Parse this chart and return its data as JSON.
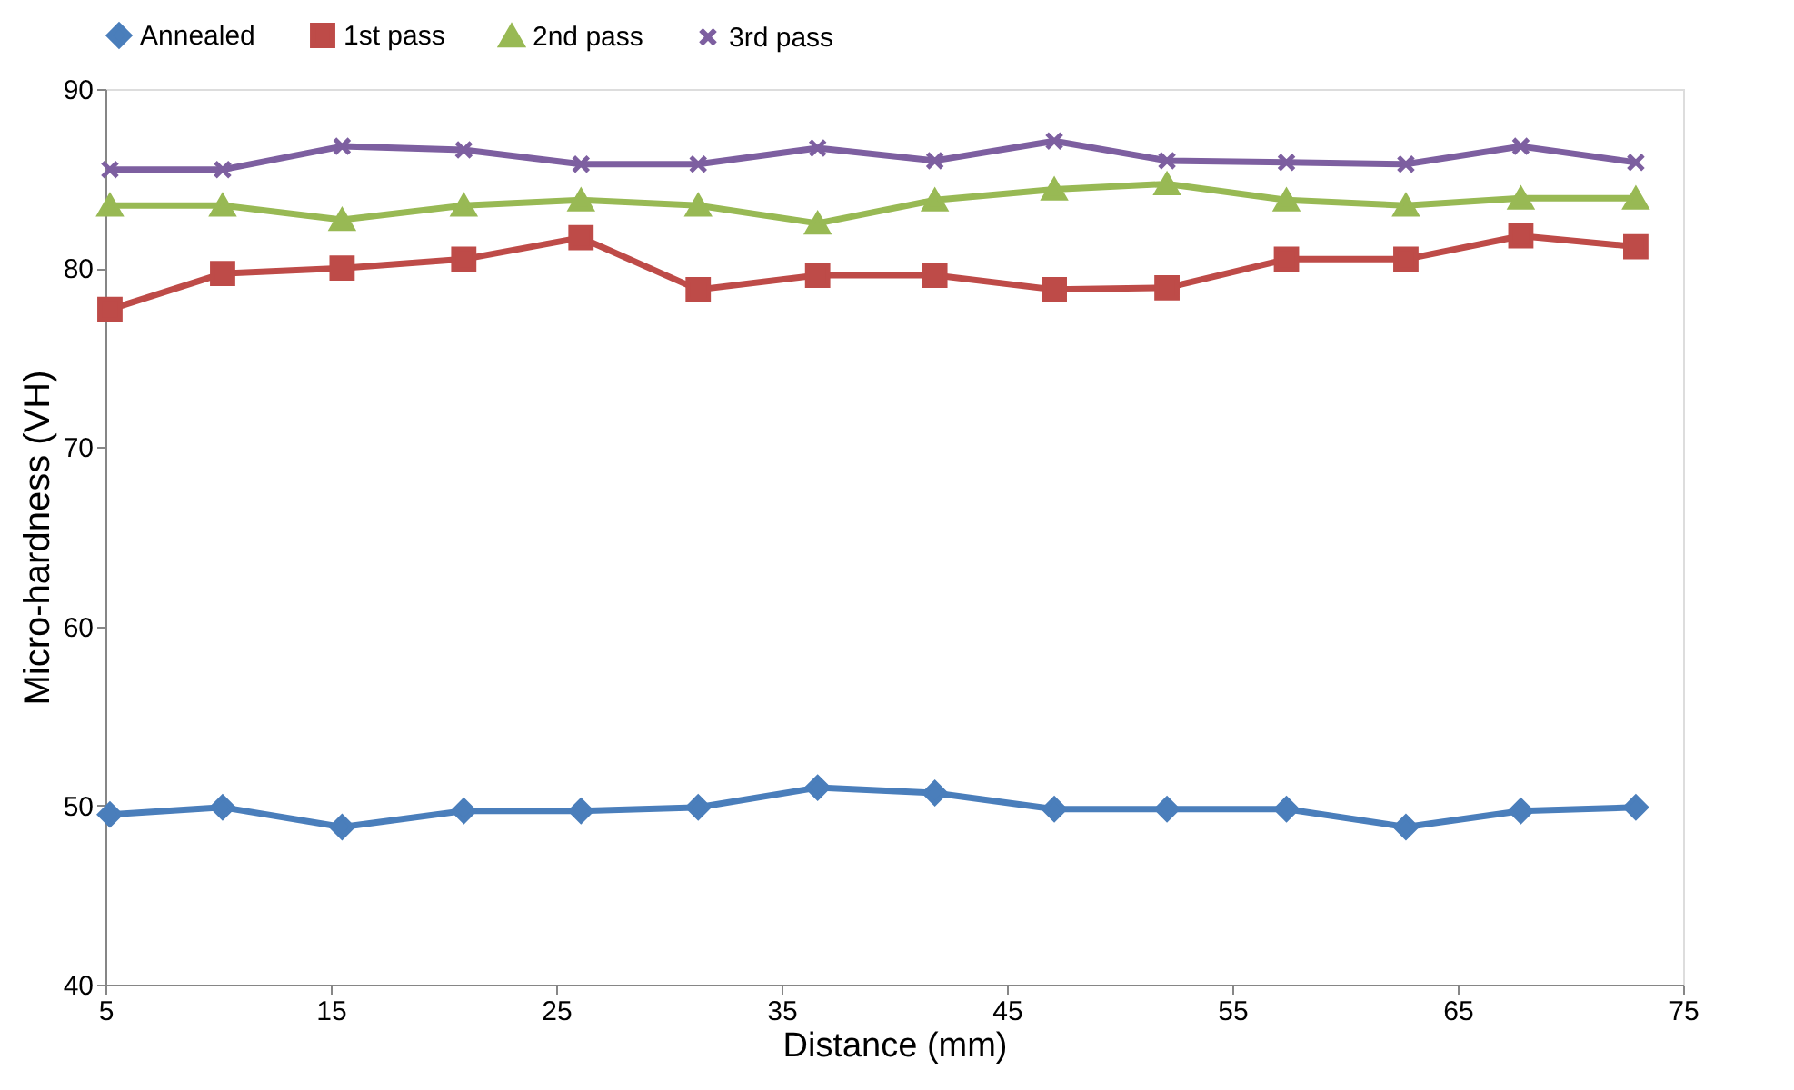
{
  "chart_data": {
    "type": "line",
    "xlabel": "Distance (mm)",
    "ylabel": "Micro-hardness (VH)",
    "xlim": [
      5,
      75
    ],
    "xticks": [
      5,
      15,
      25,
      35,
      45,
      55,
      65,
      75
    ],
    "ylim": [
      40,
      90
    ],
    "yticks": [
      40,
      50,
      60,
      70,
      80,
      90
    ],
    "grid": false,
    "legend": "top",
    "line_style": "solid",
    "x": [
      5.2,
      10.2,
      15.5,
      20.9,
      26.1,
      31.3,
      36.6,
      41.8,
      47.1,
      52.1,
      57.4,
      62.7,
      67.8,
      72.9
    ],
    "series": [
      {
        "name": "Annealed",
        "color": "#4a7ebb",
        "marker": "diamond",
        "values": [
          49.5,
          49.9,
          48.8,
          49.7,
          49.7,
          49.9,
          51.0,
          50.7,
          49.8,
          49.8,
          49.8,
          48.8,
          49.7,
          49.9
        ]
      },
      {
        "name": "1st pass",
        "color": "#be4b48",
        "marker": "square",
        "values": [
          77.7,
          79.7,
          80.0,
          80.5,
          81.7,
          78.8,
          79.6,
          79.6,
          78.8,
          78.9,
          80.5,
          80.5,
          81.8,
          81.2
        ]
      },
      {
        "name": "2nd pass",
        "color": "#98b954",
        "marker": "triangle",
        "values": [
          83.5,
          83.5,
          82.7,
          83.5,
          83.8,
          83.5,
          82.5,
          83.8,
          84.4,
          84.7,
          83.8,
          83.5,
          83.9,
          83.9
        ]
      },
      {
        "name": "3rd pass",
        "color": "#7d5fa0",
        "marker": "cross",
        "values": [
          85.5,
          85.5,
          86.8,
          86.6,
          85.8,
          85.8,
          86.7,
          86.0,
          87.1,
          86.0,
          85.9,
          85.8,
          86.8,
          85.9
        ]
      }
    ]
  }
}
